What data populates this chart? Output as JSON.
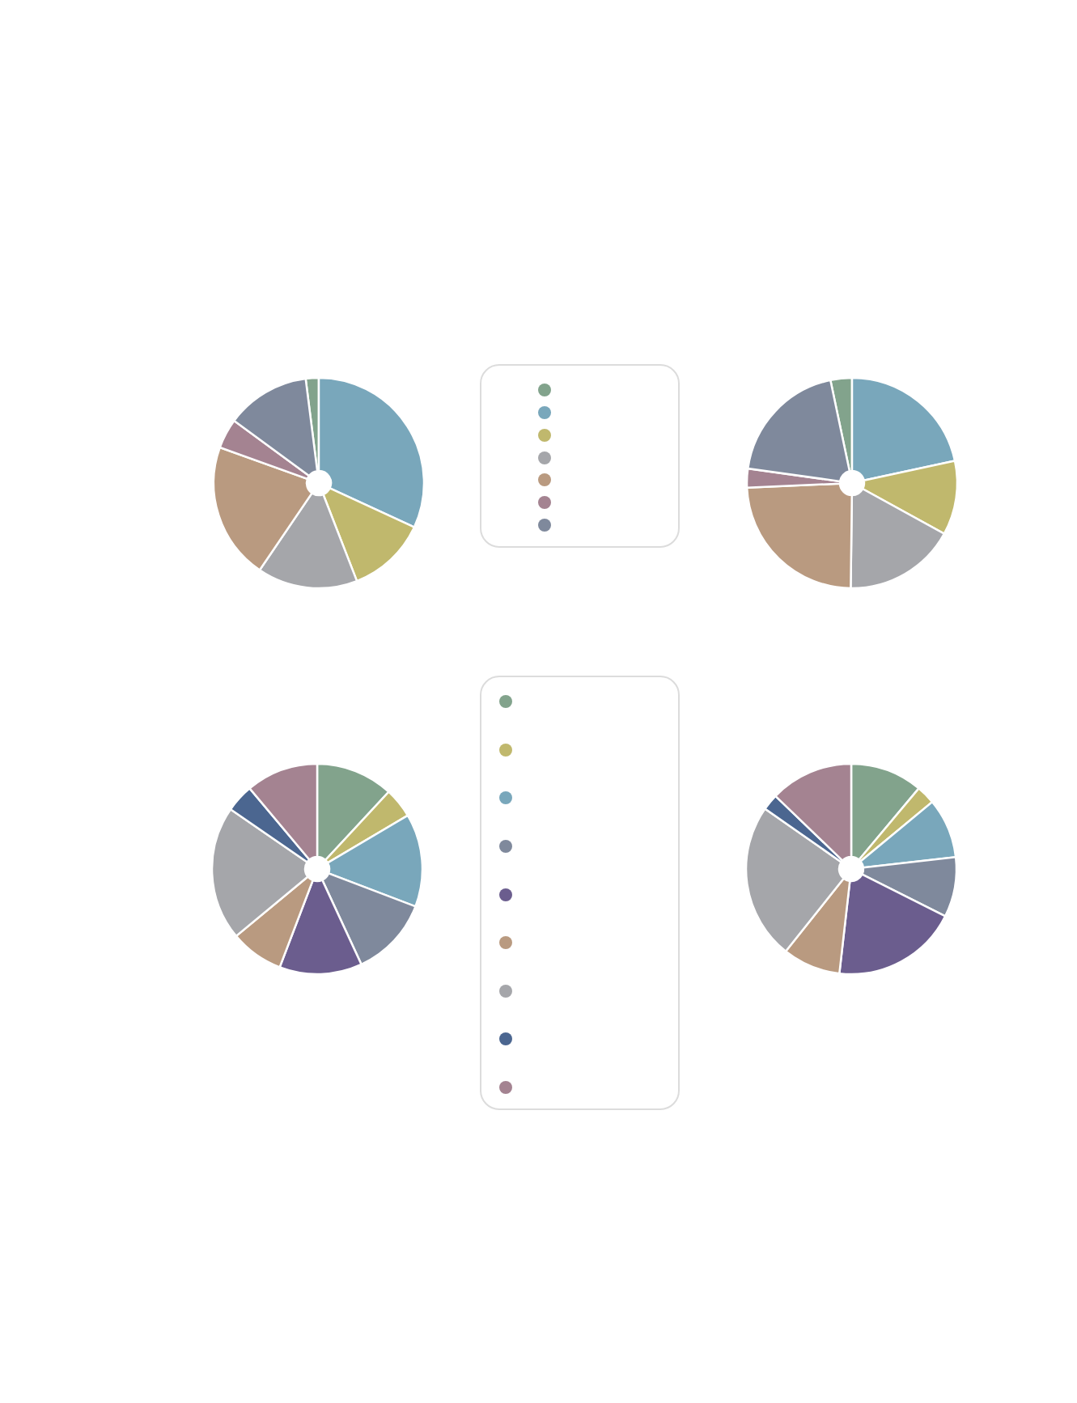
{
  "chart_data": [
    {
      "type": "pie",
      "categories": [
        null,
        null,
        null,
        null,
        null,
        null,
        null
      ],
      "values": [
        2.0,
        31.9,
        12.2,
        15.4,
        21.0,
        4.6,
        12.9
      ],
      "colors": [
        "#82a38c",
        "#79a7bb",
        "#c0b86d",
        "#a5a6aa",
        "#b99a80",
        "#a48391",
        "#7f899c"
      ]
    },
    {
      "type": "pie",
      "categories": [
        null,
        null,
        null,
        null,
        null,
        null,
        null
      ],
      "values": [
        3.3,
        21.6,
        11.4,
        17.2,
        24.1,
        2.9,
        19.5
      ],
      "colors": [
        "#82a38c",
        "#79a7bb",
        "#c0b86d",
        "#a5a6aa",
        "#b99a80",
        "#a48391",
        "#7f899c"
      ]
    },
    {
      "type": "pie",
      "categories": [
        null,
        null,
        null,
        null,
        null,
        null,
        null,
        null,
        null
      ],
      "values": [
        11.9,
        4.6,
        14.3,
        12.3,
        12.7,
        8.2,
        20.6,
        4.3,
        11.1
      ],
      "colors": [
        "#82a38c",
        "#c0b86d",
        "#79a7bb",
        "#7f899c",
        "#6b5d8e",
        "#b99a80",
        "#a5a6aa",
        "#4b6690",
        "#a48391"
      ]
    },
    {
      "type": "pie",
      "categories": [
        null,
        null,
        null,
        null,
        null,
        null,
        null,
        null,
        null
      ],
      "values": [
        11.1,
        2.9,
        9.2,
        9.2,
        19.4,
        8.9,
        24.0,
        2.5,
        12.8
      ],
      "colors": [
        "#82a38c",
        "#c0b86d",
        "#79a7bb",
        "#7f899c",
        "#6b5d8e",
        "#b99a80",
        "#a5a6aa",
        "#4b6690",
        "#a48391"
      ]
    }
  ]
}
